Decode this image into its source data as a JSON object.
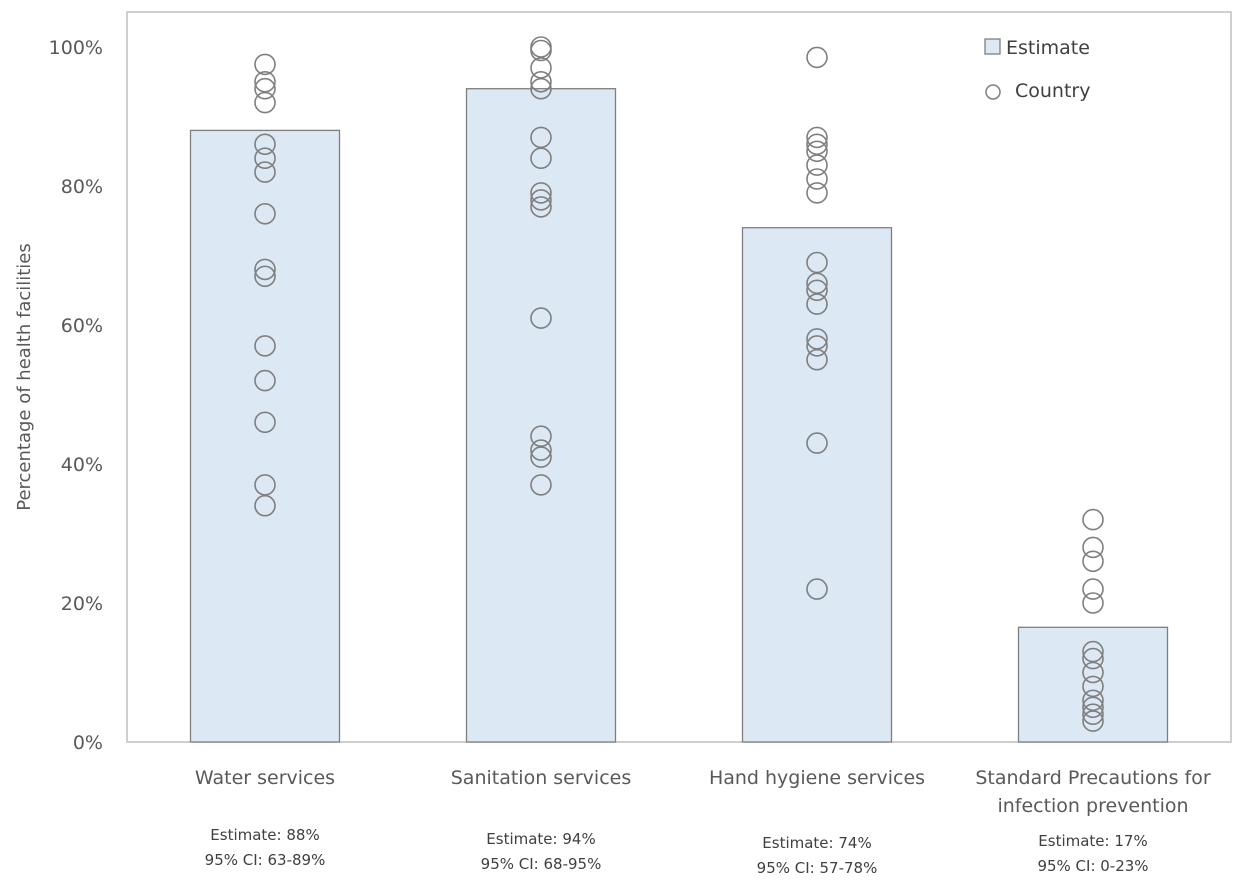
{
  "chart_data": {
    "type": "bar",
    "title": "",
    "xlabel": "",
    "ylabel": "Percentage of health facilities",
    "ylim": [
      0,
      100
    ],
    "y_ticks": [
      "0%",
      "20%",
      "40%",
      "60%",
      "80%",
      "100%"
    ],
    "y_tick_values": [
      0,
      20,
      40,
      60,
      80,
      100
    ],
    "grid": false,
    "legend_position": "top-right",
    "bar_color": "#dde8f5",
    "bar_stroke": "#7f7f7f",
    "point_stroke": "#7f7f7f",
    "categories": [
      [
        "Water services"
      ],
      [
        "Sanitation services"
      ],
      [
        "Hand hygiene services"
      ],
      [
        "Standard Precautions for",
        "infection prevention"
      ]
    ],
    "notes": [
      [
        "Estimate: 88%",
        "95% CI: 63-89%"
      ],
      [
        "Estimate: 94%",
        "95% CI: 68-95%"
      ],
      [
        "Estimate: 74%",
        "95% CI: 57-78%"
      ],
      [
        "Estimate: 17%",
        "95% CI: 0-23%"
      ]
    ],
    "series": [
      {
        "name": "Estimate",
        "type": "bar",
        "values": [
          88,
          94,
          74,
          16.5
        ]
      },
      {
        "name": "Country",
        "type": "scatter",
        "values": [
          [
            97.5,
            95,
            94,
            92,
            86,
            84,
            82,
            76,
            68,
            67,
            57,
            52,
            46,
            37,
            34
          ],
          [
            100,
            99.5,
            97,
            95,
            94,
            87,
            84,
            79,
            78,
            77,
            61,
            44,
            42,
            41,
            37
          ],
          [
            98.5,
            87,
            86,
            85,
            83,
            81,
            79,
            69,
            66,
            65,
            63,
            58,
            57,
            55,
            43,
            22
          ],
          [
            32,
            28,
            26,
            22,
            20,
            13,
            12,
            10,
            8,
            6,
            5,
            4,
            3
          ]
        ]
      }
    ]
  }
}
